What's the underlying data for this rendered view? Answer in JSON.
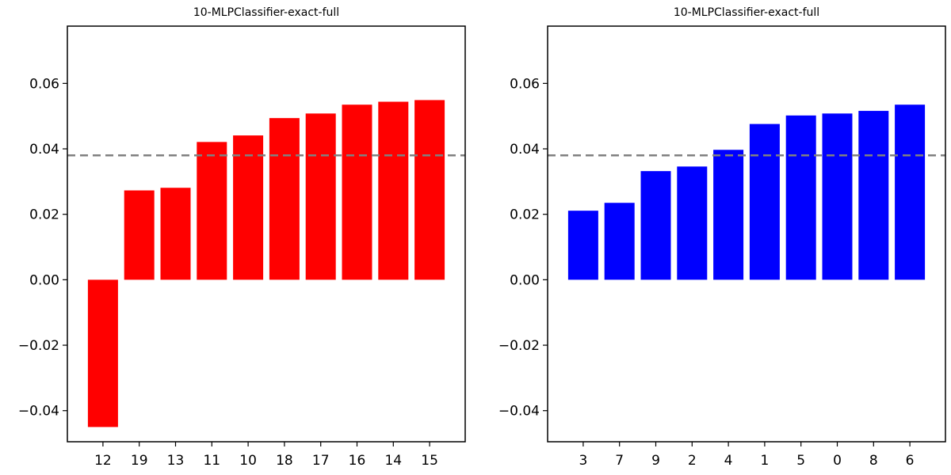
{
  "chart_data": [
    {
      "type": "bar",
      "title": "10-MLPClassifier-exact-full",
      "categories": [
        "12",
        "19",
        "13",
        "11",
        "10",
        "18",
        "17",
        "16",
        "14",
        "15"
      ],
      "values": [
        -0.045,
        0.0273,
        0.0281,
        0.0421,
        0.0441,
        0.0494,
        0.0508,
        0.0535,
        0.0544,
        0.0549
      ],
      "color": "#ff0000",
      "reference_line": 0.038,
      "reference_color": "#808080",
      "ylim": [
        -0.0495,
        0.0775
      ],
      "yticks": [
        -0.04,
        -0.02,
        0.0,
        0.02,
        0.04,
        0.06
      ],
      "ytick_labels": [
        "−0.04",
        "−0.02",
        "0.00",
        "0.02",
        "0.04",
        "0.06"
      ],
      "xlabel": "",
      "ylabel": "",
      "grid": false,
      "legend": false
    },
    {
      "type": "bar",
      "title": "10-MLPClassifier-exact-full",
      "categories": [
        "3",
        "7",
        "9",
        "2",
        "4",
        "1",
        "5",
        "0",
        "8",
        "6"
      ],
      "values": [
        0.0211,
        0.0235,
        0.0332,
        0.0346,
        0.0397,
        0.0476,
        0.0502,
        0.0508,
        0.0516,
        0.0535
      ],
      "color": "#0000ff",
      "reference_line": 0.038,
      "reference_color": "#808080",
      "ylim": [
        -0.0495,
        0.0775
      ],
      "yticks": [
        -0.04,
        -0.02,
        0.0,
        0.02,
        0.04,
        0.06
      ],
      "ytick_labels": [
        "−0.04",
        "−0.02",
        "0.00",
        "0.02",
        "0.04",
        "0.06"
      ],
      "xlabel": "",
      "ylabel": "",
      "grid": false,
      "legend": false
    }
  ]
}
